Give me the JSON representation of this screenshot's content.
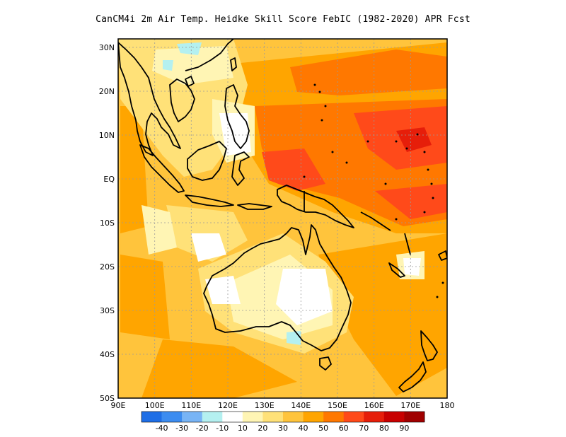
{
  "title": "CanCM4i  2m Air Temp. Heidke Skill Score FebIC (1982-2020) APR Fcst",
  "map": {
    "lat_labels": [
      "30N",
      "20N",
      "10N",
      "EQ",
      "10S",
      "20S",
      "30S",
      "40S",
      "50S"
    ],
    "lon_labels": [
      "90E",
      "100E",
      "110E",
      "120E",
      "130E",
      "140E",
      "150E",
      "160E",
      "170E",
      "180"
    ],
    "lon_range": [
      90,
      180
    ],
    "lat_range": [
      -50,
      32
    ],
    "grid": "dotted"
  },
  "colorbar": {
    "colors": [
      "#1e6ee6",
      "#3c8cf0",
      "#78b4f5",
      "#b4f0f0",
      "#ffffff",
      "#fff5b4",
      "#ffe178",
      "#ffc43c",
      "#ffa500",
      "#ff7800",
      "#ff4a1a",
      "#e61e0a",
      "#c80000",
      "#a00000"
    ],
    "labels": [
      "-40",
      "-30",
      "-20",
      "-10",
      "10",
      "20",
      "30",
      "40",
      "50",
      "60",
      "70",
      "80",
      "90"
    ]
  }
}
